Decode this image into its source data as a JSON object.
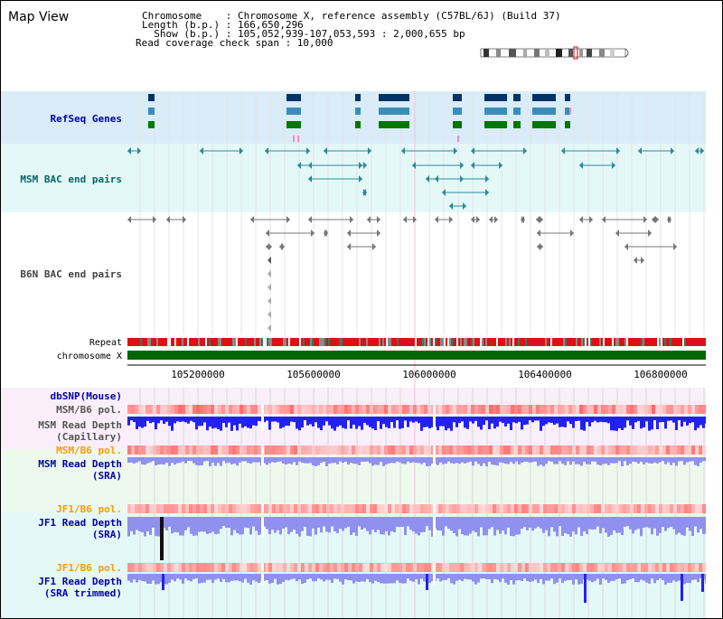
{
  "title": "Map View",
  "info": {
    "chrom_line": "Chromosome    : Chromosome X, reference assembly (C57BL/6J) (Build 37)",
    "length_line": "Length (b.p.) : 166,650,296",
    "show_line": "  Show (b.p.) : 105,052,939-107,053,593 : 2,000,655 bp",
    "span_line": "Read coverage check span : 10,000"
  },
  "tracks": {
    "refseq": "RefSeq Genes",
    "msm_bac": "MSM BAC end pairs",
    "b6n_bac": "B6N BAC end pairs",
    "repeat": "Repeat",
    "chromosome": "chromosome X",
    "dbsnp": "dbSNP(Mouse)",
    "msm_pol1": "MSM/B6 pol.",
    "msm_depth_cap_1": "MSM Read Depth",
    "msm_depth_cap_2": "(Capillary)",
    "msm_pol2": "MSM/B6 pol.",
    "msm_depth_sra_1": "MSM Read Depth",
    "msm_depth_sra_2": "(SRA)",
    "jf1_pol1": "JF1/B6 pol.",
    "jf1_depth_sra_1": "JF1 Read Depth",
    "jf1_depth_sra_2": "(SRA)",
    "jf1_pol2": "JF1/B6 pol.",
    "jf1_depth_trim_1": "JF1 Read Depth",
    "jf1_depth_trim_2": "(SRA trimmed)"
  },
  "axis_ticks": [
    "105200000",
    "105600000",
    "106000000",
    "106400000",
    "106800000"
  ],
  "colors": {
    "label_blue": "#0000aa",
    "label_teal": "#006666",
    "label_gray": "#444444",
    "label_orange": "#ff9900",
    "refseq_bg": "#d9ecf8",
    "msm_bg": "#e5f8f8",
    "sra_bg": "#eef9ee",
    "jf1_bg": "#e5f8f8",
    "chromosome_bar": "#006600",
    "gene_dark": "#003366",
    "gene_mid": "#3a8db5",
    "gene_green": "#007700",
    "depth_blue": "#2222ee",
    "depth_light": "#9090ee",
    "marker_pink": "#ff88bb"
  }
}
